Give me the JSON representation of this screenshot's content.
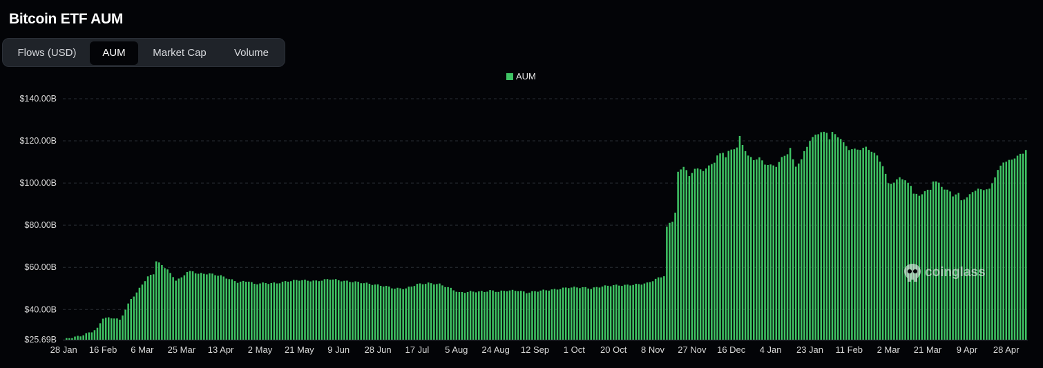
{
  "page": {
    "title": "Bitcoin ETF AUM"
  },
  "tabs": [
    {
      "label": "Flows (USD)",
      "active": false
    },
    {
      "label": "AUM",
      "active": true
    },
    {
      "label": "Market Cap",
      "active": false
    },
    {
      "label": "Volume",
      "active": false
    }
  ],
  "watermark": {
    "text": "coinglass",
    "icon": "coinglass-logo-icon"
  },
  "colors": {
    "bar": "#3fc464",
    "grid": "#2a2e35",
    "background": "#030407",
    "text": "#d9d9d9"
  },
  "chart_data": {
    "type": "bar",
    "title": "Bitcoin ETF AUM",
    "legend": {
      "entries": [
        "AUM"
      ],
      "position": "top-center"
    },
    "series": [
      {
        "name": "AUM",
        "color": "#3fc464"
      }
    ],
    "grid": true,
    "ylim": [
      25.69,
      140
    ],
    "yticks": [
      {
        "value": 25.69,
        "label": "$25.69B"
      },
      {
        "value": 40,
        "label": "$40.00B"
      },
      {
        "value": 60,
        "label": "$60.00B"
      },
      {
        "value": 80,
        "label": "$80.00B"
      },
      {
        "value": 100,
        "label": "$100.00B"
      },
      {
        "value": 120,
        "label": "$120.00B"
      },
      {
        "value": 140,
        "label": "$140.00B"
      }
    ],
    "xticks": [
      {
        "label": "28 Jan",
        "index": 0
      },
      {
        "label": "16 Feb",
        "index": 14
      },
      {
        "label": "6 Mar",
        "index": 28
      },
      {
        "label": "25 Mar",
        "index": 42
      },
      {
        "label": "13 Apr",
        "index": 56
      },
      {
        "label": "2 May",
        "index": 70
      },
      {
        "label": "21 May",
        "index": 84
      },
      {
        "label": "9 Jun",
        "index": 98
      },
      {
        "label": "28 Jun",
        "index": 112
      },
      {
        "label": "17 Jul",
        "index": 126
      },
      {
        "label": "5 Aug",
        "index": 140
      },
      {
        "label": "24 Aug",
        "index": 154
      },
      {
        "label": "12 Sep",
        "index": 168
      },
      {
        "label": "1 Oct",
        "index": 182
      },
      {
        "label": "20 Oct",
        "index": 196
      },
      {
        "label": "8 Nov",
        "index": 210
      },
      {
        "label": "27 Nov",
        "index": 224
      },
      {
        "label": "16 Dec",
        "index": 238
      },
      {
        "label": "4 Jan",
        "index": 252
      },
      {
        "label": "23 Jan",
        "index": 266
      },
      {
        "label": "11 Feb",
        "index": 280
      },
      {
        "label": "2 Mar",
        "index": 294
      },
      {
        "label": "21 Mar",
        "index": 308
      },
      {
        "label": "9 Apr",
        "index": 322
      },
      {
        "label": "28 Apr",
        "index": 336
      }
    ],
    "anchors": [
      [
        0,
        25.7
      ],
      [
        2,
        26.5
      ],
      [
        6,
        27.5
      ],
      [
        10,
        29.5
      ],
      [
        12,
        31
      ],
      [
        14,
        36
      ],
      [
        18,
        36
      ],
      [
        20,
        35
      ],
      [
        22,
        40
      ],
      [
        24,
        45
      ],
      [
        26,
        48
      ],
      [
        28,
        52
      ],
      [
        30,
        55.5
      ],
      [
        32,
        57
      ],
      [
        33,
        63
      ],
      [
        35,
        61
      ],
      [
        37,
        59
      ],
      [
        38,
        57
      ],
      [
        40,
        54
      ],
      [
        42,
        55
      ],
      [
        44,
        58
      ],
      [
        46,
        58
      ],
      [
        48,
        57
      ],
      [
        52,
        57
      ],
      [
        56,
        56
      ],
      [
        60,
        54
      ],
      [
        62,
        53
      ],
      [
        66,
        53.5
      ],
      [
        68,
        52
      ],
      [
        70,
        52.5
      ],
      [
        72,
        52.5
      ],
      [
        76,
        52.5
      ],
      [
        80,
        53.5
      ],
      [
        84,
        54
      ],
      [
        90,
        53.5
      ],
      [
        95,
        54.5
      ],
      [
        100,
        53.5
      ],
      [
        105,
        53
      ],
      [
        110,
        52
      ],
      [
        115,
        51
      ],
      [
        118,
        50
      ],
      [
        122,
        50
      ],
      [
        126,
        52
      ],
      [
        130,
        52.5
      ],
      [
        134,
        52
      ],
      [
        138,
        50
      ],
      [
        141,
        48
      ],
      [
        145,
        48.5
      ],
      [
        150,
        48.5
      ],
      [
        152,
        49
      ],
      [
        155,
        48.5
      ],
      [
        158,
        49
      ],
      [
        162,
        49
      ],
      [
        165,
        48
      ],
      [
        170,
        49
      ],
      [
        175,
        49.5
      ],
      [
        180,
        50.5
      ],
      [
        185,
        50.5
      ],
      [
        188,
        50
      ],
      [
        192,
        51
      ],
      [
        196,
        51.5
      ],
      [
        200,
        51.5
      ],
      [
        205,
        52
      ],
      [
        208,
        52.5
      ],
      [
        212,
        55
      ],
      [
        214,
        56
      ],
      [
        215,
        79
      ],
      [
        216,
        81
      ],
      [
        217,
        82
      ],
      [
        218,
        86
      ],
      [
        219,
        105
      ],
      [
        221,
        108
      ],
      [
        222,
        106
      ],
      [
        223,
        103
      ],
      [
        225,
        107
      ],
      [
        228,
        106
      ],
      [
        230,
        108
      ],
      [
        232,
        110
      ],
      [
        233,
        113
      ],
      [
        235,
        114.5
      ],
      [
        236,
        112.5
      ],
      [
        237,
        115
      ],
      [
        240,
        117
      ],
      [
        241,
        122
      ],
      [
        242,
        118
      ],
      [
        244,
        113
      ],
      [
        246,
        111
      ],
      [
        248,
        112
      ],
      [
        250,
        109
      ],
      [
        254,
        108
      ],
      [
        256,
        112
      ],
      [
        258,
        114
      ],
      [
        259,
        116.5
      ],
      [
        260,
        111
      ],
      [
        261,
        108
      ],
      [
        263,
        111
      ],
      [
        264,
        115
      ],
      [
        266,
        120
      ],
      [
        268,
        123
      ],
      [
        270,
        124
      ],
      [
        272,
        124
      ],
      [
        273,
        121
      ],
      [
        274,
        124
      ],
      [
        277,
        121
      ],
      [
        278,
        119
      ],
      [
        280,
        116
      ],
      [
        284,
        116
      ],
      [
        286,
        117
      ],
      [
        288,
        115
      ],
      [
        290,
        113
      ],
      [
        292,
        108
      ],
      [
        293,
        104
      ],
      [
        294,
        100
      ],
      [
        296,
        100
      ],
      [
        298,
        103
      ],
      [
        300,
        101
      ],
      [
        302,
        99
      ],
      [
        303,
        95
      ],
      [
        305,
        94
      ],
      [
        307,
        96
      ],
      [
        309,
        97
      ],
      [
        310,
        101
      ],
      [
        312,
        100
      ],
      [
        314,
        97
      ],
      [
        316,
        96
      ],
      [
        317,
        94
      ],
      [
        319,
        95
      ],
      [
        320,
        92
      ],
      [
        322,
        93
      ],
      [
        324,
        96
      ],
      [
        326,
        97
      ],
      [
        330,
        97
      ],
      [
        331,
        100
      ],
      [
        333,
        106
      ],
      [
        335,
        110
      ],
      [
        338,
        111
      ],
      [
        340,
        113
      ],
      [
        342,
        114
      ],
      [
        343,
        116
      ]
    ],
    "bar_count": 344
  }
}
